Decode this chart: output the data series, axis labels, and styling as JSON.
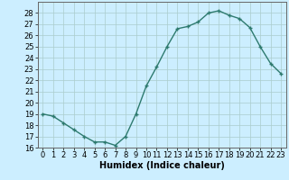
{
  "x": [
    0,
    1,
    2,
    3,
    4,
    5,
    6,
    7,
    8,
    9,
    10,
    11,
    12,
    13,
    14,
    15,
    16,
    17,
    18,
    19,
    20,
    21,
    22,
    23
  ],
  "y": [
    19.0,
    18.8,
    18.2,
    17.6,
    17.0,
    16.5,
    16.5,
    16.2,
    17.0,
    19.0,
    21.5,
    23.2,
    25.0,
    26.6,
    26.8,
    27.2,
    28.0,
    28.2,
    27.8,
    27.5,
    26.7,
    25.0,
    23.5,
    22.6
  ],
  "line_color": "#2d7a6e",
  "marker": "+",
  "marker_color": "#2d7a6e",
  "bg_color": "#cceeff",
  "grid_color": "#aacccc",
  "xlabel": "Humidex (Indice chaleur)",
  "ylim": [
    16,
    29
  ],
  "xlim": [
    -0.5,
    23.5
  ],
  "yticks": [
    16,
    17,
    18,
    19,
    20,
    21,
    22,
    23,
    24,
    25,
    26,
    27,
    28
  ],
  "xticks": [
    0,
    1,
    2,
    3,
    4,
    5,
    6,
    7,
    8,
    9,
    10,
    11,
    12,
    13,
    14,
    15,
    16,
    17,
    18,
    19,
    20,
    21,
    22,
    23
  ],
  "xlabel_fontsize": 7,
  "tick_fontsize": 6,
  "line_width": 1.0,
  "marker_size": 3
}
